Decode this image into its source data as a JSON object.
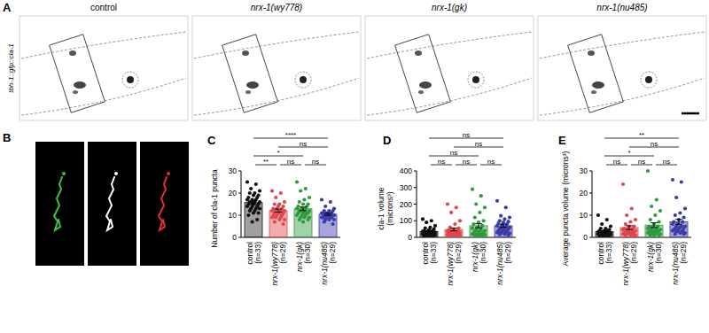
{
  "figure": {
    "panel_a": {
      "label": "A",
      "ylabel": "tbh-1::gfp::cla-1",
      "titles": [
        "control",
        "nrx-1(wy778)",
        "nrx-1(gk)",
        "nrx-1(nu485)"
      ]
    },
    "panel_b": {
      "label": "B"
    }
  },
  "chart_data": [
    {
      "type": "bar",
      "panel": "C",
      "ylabel": [
        "Number of cla-1 puncta"
      ],
      "categories": [
        "control",
        "nrx-1(wy778)",
        "nrx-1(gk)",
        "nrx-1(nu485)"
      ],
      "n_labels": [
        "(n=33)",
        "(n=29)",
        "(n=30)",
        "(n=29)"
      ],
      "colors": [
        "#111111",
        "#e0464b",
        "#2e9a3a",
        "#3a3aa8"
      ],
      "values": [
        15.7,
        12.1,
        12.9,
        10.4
      ],
      "errors": [
        0.8,
        0.7,
        0.8,
        0.45
      ],
      "points": [
        [
          25,
          24,
          22,
          21,
          20,
          20,
          19,
          19,
          18,
          18,
          17,
          17,
          17,
          16,
          16,
          16,
          16,
          15,
          15,
          15,
          14,
          14,
          14,
          13,
          13,
          13,
          12,
          12,
          11,
          11,
          10,
          8,
          7
        ],
        [
          21,
          20,
          18,
          16,
          15,
          15,
          14,
          14,
          13,
          13,
          13,
          12,
          12,
          12,
          12,
          11,
          11,
          11,
          11,
          10,
          10,
          10,
          9,
          9,
          9,
          8,
          8,
          7,
          6
        ],
        [
          25,
          22,
          21,
          18,
          17,
          16,
          15,
          15,
          14,
          14,
          13,
          13,
          13,
          12,
          12,
          12,
          12,
          11,
          11,
          11,
          11,
          10,
          10,
          10,
          9,
          9,
          9,
          8,
          8,
          7
        ],
        [
          17,
          16,
          14,
          13,
          12,
          12,
          12,
          11,
          11,
          11,
          11,
          11,
          10,
          10,
          10,
          10,
          10,
          10,
          10,
          9,
          9,
          9,
          9,
          9,
          8,
          8,
          8,
          7,
          6
        ]
      ],
      "ylim": [
        0,
        30
      ],
      "yticks": [
        0,
        10,
        20,
        30
      ],
      "comparisons": [
        {
          "groups": [
            0,
            3
          ],
          "label": "****"
        },
        {
          "groups": [
            1,
            3
          ],
          "label": "ns"
        },
        {
          "groups": [
            0,
            2
          ],
          "label": "*"
        },
        {
          "groups": [
            0,
            1
          ],
          "label": "**"
        },
        {
          "groups": [
            1,
            2
          ],
          "label": "ns"
        },
        {
          "groups": [
            2,
            3
          ],
          "label": "ns"
        }
      ]
    },
    {
      "type": "bar",
      "panel": "D",
      "ylabel": [
        "cla-1 volume",
        "(microns³)"
      ],
      "categories": [
        "control",
        "nrx-1(wy778)",
        "nrx-1(gk)",
        "nrx-1(nu485)"
      ],
      "n_labels": [
        "(n=33)",
        "(n=29)",
        "(n=30)",
        "(n=29)"
      ],
      "colors": [
        "#111111",
        "#e0464b",
        "#2e9a3a",
        "#3a3aa8"
      ],
      "values": [
        34.5,
        47.2,
        69.8,
        69.6
      ],
      "errors": [
        4,
        8,
        12,
        9
      ],
      "points": [
        [
          110,
          100,
          90,
          70,
          60,
          55,
          50,
          45,
          40,
          40,
          35,
          35,
          30,
          30,
          30,
          28,
          25,
          25,
          25,
          22,
          20,
          20,
          20,
          18,
          18,
          15,
          15,
          15,
          12,
          12,
          10,
          10,
          8
        ],
        [
          200,
          180,
          150,
          100,
          80,
          60,
          55,
          50,
          45,
          40,
          40,
          35,
          35,
          30,
          30,
          28,
          25,
          25,
          22,
          20,
          20,
          18,
          15,
          15,
          12,
          12,
          10,
          10,
          8
        ],
        [
          290,
          250,
          200,
          180,
          150,
          120,
          100,
          90,
          80,
          70,
          60,
          55,
          50,
          45,
          40,
          40,
          35,
          30,
          30,
          25,
          25,
          20,
          20,
          18,
          15,
          15,
          12,
          12,
          10,
          8
        ],
        [
          220,
          180,
          130,
          120,
          110,
          100,
          95,
          90,
          85,
          80,
          75,
          70,
          65,
          60,
          60,
          55,
          50,
          50,
          45,
          40,
          40,
          35,
          30,
          30,
          25,
          25,
          20,
          18,
          15
        ]
      ],
      "ylim": [
        0,
        400
      ],
      "yticks": [
        0,
        100,
        200,
        300,
        400
      ],
      "comparisons": [
        {
          "groups": [
            0,
            3
          ],
          "label": "ns"
        },
        {
          "groups": [
            1,
            3
          ],
          "label": "ns"
        },
        {
          "groups": [
            0,
            2
          ],
          "label": "ns"
        },
        {
          "groups": [
            0,
            1
          ],
          "label": "ns"
        },
        {
          "groups": [
            1,
            2
          ],
          "label": "ns"
        },
        {
          "groups": [
            2,
            3
          ],
          "label": "ns"
        }
      ]
    },
    {
      "type": "bar",
      "panel": "E",
      "ylabel": [
        "Average puncta volume (microns³)"
      ],
      "categories": [
        "control",
        "nrx-1(wy778)",
        "nrx-1(gk)",
        "nrx-1(nu485)"
      ],
      "n_labels": [
        "(n=33)",
        "(n=29)",
        "(n=30)",
        "(n=29)"
      ],
      "colors": [
        "#111111",
        "#e0464b",
        "#2e9a3a",
        "#3a3aa8"
      ],
      "values": [
        2.6,
        4.4,
        5.5,
        7.0
      ],
      "errors": [
        0.35,
        0.85,
        1.1,
        1.1
      ],
      "points": [
        [
          10,
          8,
          6,
          5,
          4,
          4,
          3.5,
          3,
          3,
          3,
          2.5,
          2.5,
          2.5,
          2,
          2,
          2,
          2,
          2,
          2,
          1.8,
          1.5,
          1.5,
          1.5,
          1.5,
          1.2,
          1.2,
          1,
          1,
          1,
          1,
          0.8,
          0.8,
          0.5
        ],
        [
          24,
          13,
          10,
          8,
          7,
          6,
          5,
          5,
          4,
          4,
          4,
          3.5,
          3,
          3,
          3,
          3,
          2.5,
          2.5,
          2,
          2,
          2,
          2,
          1.5,
          1.5,
          1.5,
          1,
          1,
          1,
          0.8
        ],
        [
          30,
          17,
          14,
          12,
          10,
          8,
          7,
          6,
          5,
          5,
          5,
          4,
          4,
          4,
          3.5,
          3,
          3,
          3,
          3,
          2.5,
          2.5,
          2,
          2,
          2,
          2,
          1.5,
          1.5,
          1,
          1,
          1
        ],
        [
          26,
          25,
          18,
          13,
          11,
          10,
          9,
          8,
          7,
          7,
          6,
          6,
          5,
          5,
          5,
          4.5,
          4,
          4,
          4,
          3.5,
          3,
          3,
          3,
          2.5,
          2.5,
          2,
          2,
          1.5,
          1.5
        ]
      ],
      "ylim": [
        0,
        30
      ],
      "yticks": [
        0,
        10,
        20,
        30
      ],
      "comparisons": [
        {
          "groups": [
            0,
            3
          ],
          "label": "**"
        },
        {
          "groups": [
            1,
            3
          ],
          "label": "ns"
        },
        {
          "groups": [
            0,
            2
          ],
          "label": "*"
        },
        {
          "groups": [
            0,
            1
          ],
          "label": "ns"
        },
        {
          "groups": [
            1,
            2
          ],
          "label": "ns"
        },
        {
          "groups": [
            2,
            3
          ],
          "label": "ns"
        }
      ]
    }
  ]
}
